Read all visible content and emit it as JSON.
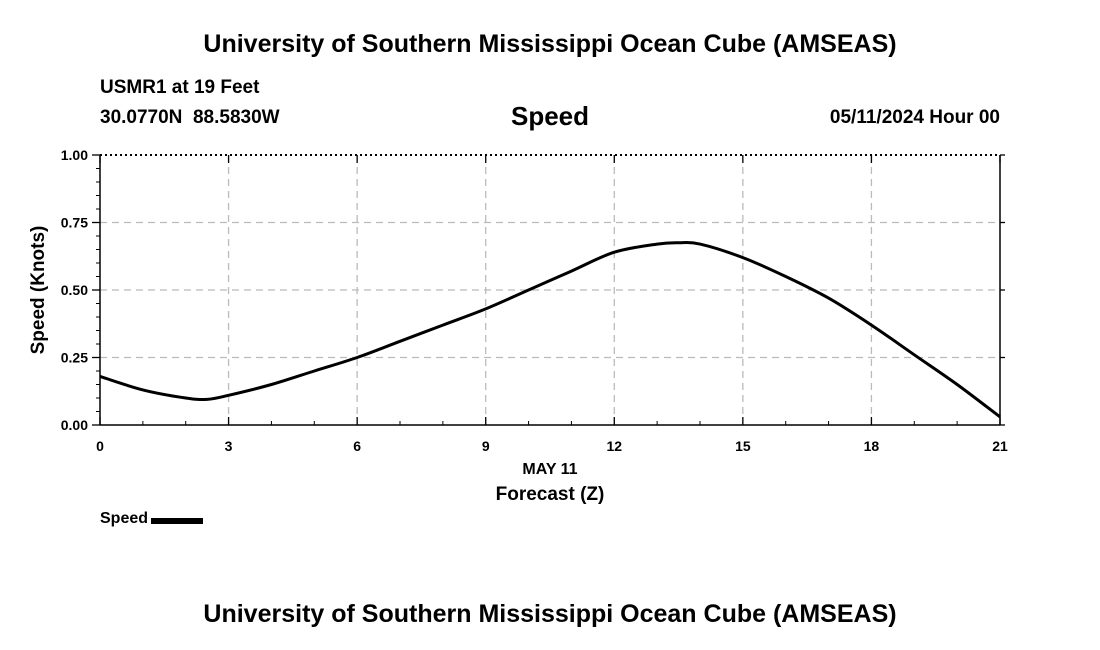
{
  "header": {
    "title": "University of Southern Mississippi Ocean Cube (AMSEAS)",
    "station": "USMR1 at 19 Feet",
    "coordinates": "30.0770N  88.5830W",
    "variable": "Speed",
    "datetime": "05/11/2024 Hour 00"
  },
  "footer": {
    "title": "University of Southern Mississippi Ocean Cube (AMSEAS)"
  },
  "legend": {
    "label": "Speed"
  },
  "chart_data": {
    "type": "line",
    "title": "Speed",
    "xlabel": "Forecast (Z)",
    "xlabel_date": "MAY 11",
    "ylabel": "Speed (Knots)",
    "xlim": [
      0,
      21
    ],
    "ylim": [
      0,
      1
    ],
    "xticks": [
      0,
      3,
      6,
      9,
      12,
      15,
      18,
      21
    ],
    "xtick_labels": [
      "0",
      "3",
      "6",
      "9",
      "12",
      "15",
      "18",
      "21"
    ],
    "yticks": [
      0,
      0.25,
      0.5,
      0.75,
      1.0
    ],
    "ytick_labels": [
      "0.00",
      "0.25",
      "0.50",
      "0.75",
      "1.00"
    ],
    "grid": true,
    "series": [
      {
        "name": "Speed",
        "color": "#000000",
        "x": [
          0,
          1,
          2,
          2.5,
          3,
          4,
          5,
          6,
          7,
          8,
          9,
          10,
          11,
          12,
          13,
          13.5,
          14,
          15,
          16,
          17,
          18,
          19,
          20,
          21
        ],
        "y": [
          0.18,
          0.13,
          0.1,
          0.095,
          0.11,
          0.15,
          0.2,
          0.25,
          0.31,
          0.37,
          0.43,
          0.5,
          0.57,
          0.64,
          0.67,
          0.675,
          0.67,
          0.62,
          0.55,
          0.47,
          0.37,
          0.26,
          0.15,
          0.03
        ]
      }
    ]
  }
}
